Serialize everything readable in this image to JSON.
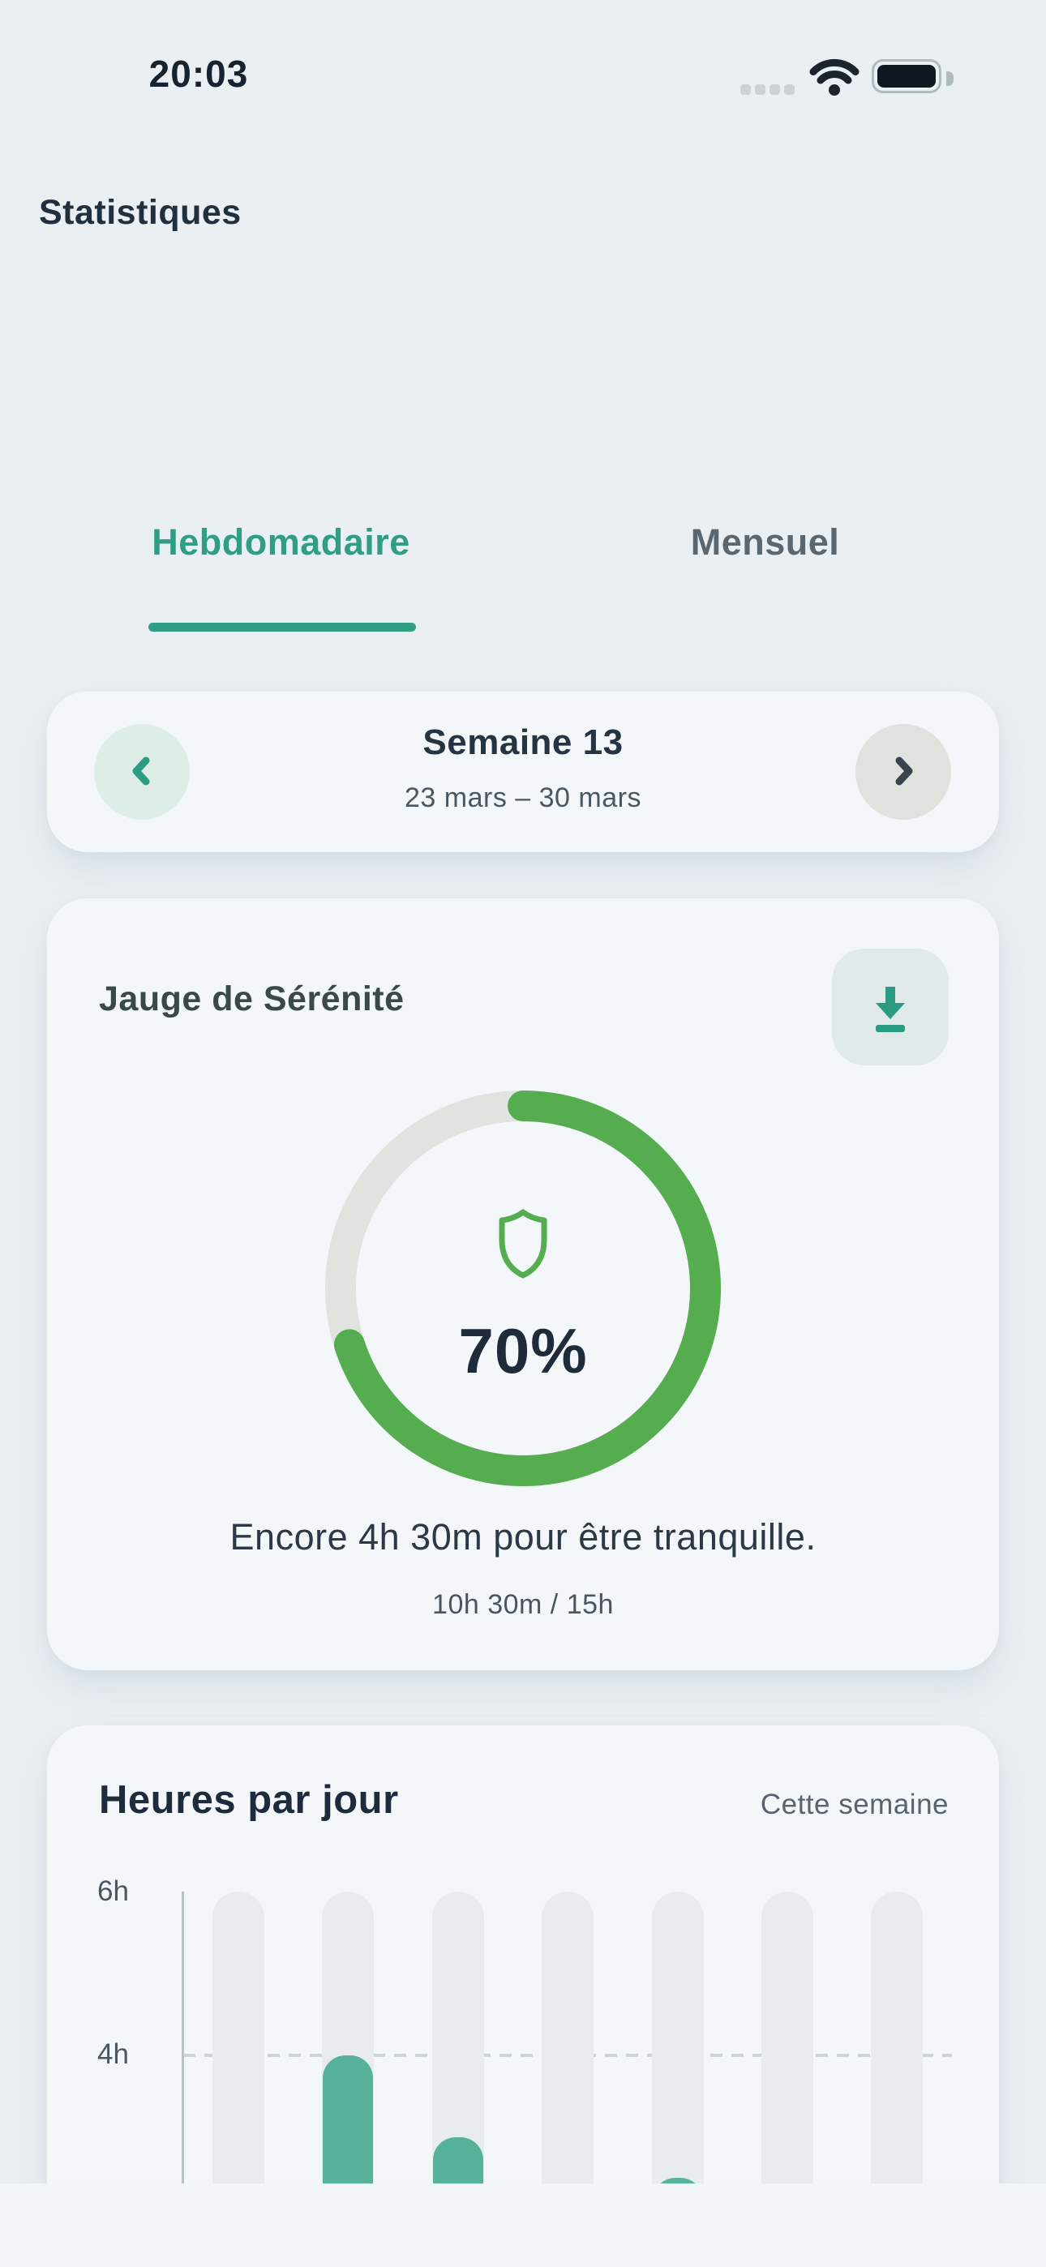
{
  "colors": {
    "accent_teal": "#2f9e85",
    "gauge_green": "#55ad50",
    "gauge_track_grey": "#e0e4de",
    "bar_teal": "#56b29b",
    "text_dark": "#1f2d3d"
  },
  "status_bar": {
    "time": "20:03"
  },
  "header": {
    "title": "Statistiques"
  },
  "tabs": {
    "weekly_label": "Hebdomadaire",
    "monthly_label": "Mensuel",
    "active": "Hebdomadaire"
  },
  "week_selector": {
    "title": "Semaine 13",
    "range": "23 mars – 30 mars"
  },
  "gauge_card": {
    "title": "Jauge de Sérénité",
    "percent": 70,
    "percent_label": "70%",
    "message": "Encore 4h 30m pour être tranquille.",
    "ratio": "10h 30m / 15h"
  },
  "hours_card": {
    "title": "Heures par jour",
    "period": "Cette semaine"
  },
  "chart_data": {
    "type": "bar",
    "title": "Heures par jour",
    "subtitle": "Cette semaine",
    "unit": "hours",
    "num_days": 7,
    "categories": [
      "",
      "",
      "",
      "",
      "",
      "",
      ""
    ],
    "series": [
      {
        "name": "Heures par jour",
        "values": [
          null,
          4.0,
          3.0,
          null,
          2.5,
          null,
          null
        ]
      }
    ],
    "yticks": [
      {
        "label": "6h",
        "value": 6
      },
      {
        "label": "4h",
        "value": 4
      }
    ],
    "guide_line": {
      "value": 4,
      "style": "dashed"
    },
    "ylim": [
      0,
      6
    ],
    "grid": false,
    "legend": false,
    "bottom_clipped": true
  }
}
